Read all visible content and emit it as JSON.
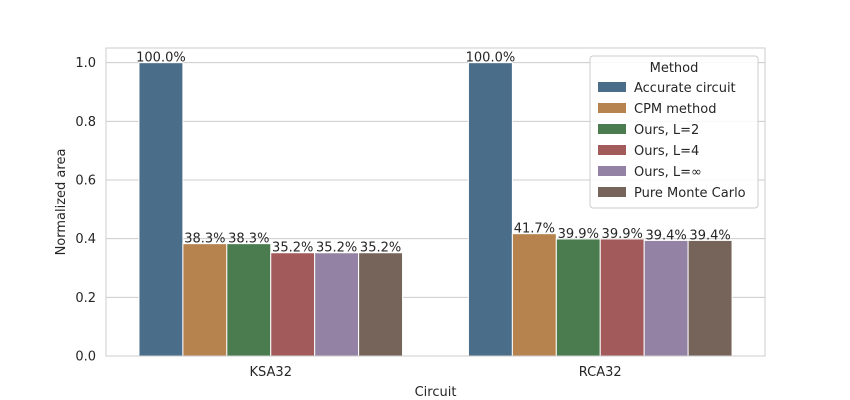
{
  "chart_data": {
    "type": "bar",
    "xlabel": "Circuit",
    "ylabel": "Normalized area",
    "categories": [
      "KSA32",
      "RCA32"
    ],
    "ylim": [
      0,
      1.05
    ],
    "yticks": [
      0.0,
      0.2,
      0.4,
      0.6,
      0.8,
      1.0
    ],
    "ytick_labels": [
      "0.0",
      "0.2",
      "0.4",
      "0.6",
      "0.8",
      "1.0"
    ],
    "grid": true,
    "legend": {
      "title": "Method",
      "placement": "top-right"
    },
    "series": [
      {
        "name": "Accurate circuit",
        "color": "#4a6e8a",
        "values": [
          1.0,
          1.0
        ],
        "labels": [
          "100.0%",
          "100.0%"
        ]
      },
      {
        "name": "CPM method",
        "color": "#b6834f",
        "values": [
          0.383,
          0.417
        ],
        "labels": [
          "38.3%",
          "41.7%"
        ]
      },
      {
        "name": "Ours, L=2",
        "color": "#4a7c4f",
        "values": [
          0.383,
          0.399
        ],
        "labels": [
          "38.3%",
          "39.9%"
        ]
      },
      {
        "name": "Ours, L=4",
        "color": "#a35a5a",
        "values": [
          0.352,
          0.399
        ],
        "labels": [
          "35.2%",
          "39.9%"
        ]
      },
      {
        "name": "Ours, L=∞",
        "color": "#9382a3",
        "values": [
          0.352,
          0.394
        ],
        "labels": [
          "35.2%",
          "39.4%"
        ]
      },
      {
        "name": "Pure Monte Carlo",
        "color": "#76635a",
        "values": [
          0.352,
          0.394
        ],
        "labels": [
          "35.2%",
          "39.4%"
        ]
      }
    ]
  }
}
